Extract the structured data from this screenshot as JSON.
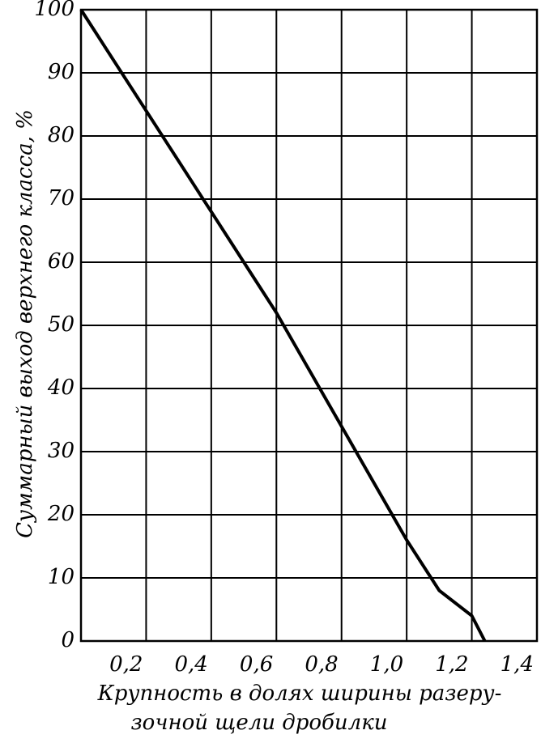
{
  "chart_data": {
    "type": "line",
    "x_label": [
      "Крупность в долях ширины разеру-",
      "зочной щели дробилки"
    ],
    "y_label": "Суммарный выход верхнего класса, %",
    "x": [
      0,
      0.1,
      0.2,
      0.3,
      0.4,
      0.5,
      0.6,
      0.7,
      0.8,
      0.9,
      1.0,
      1.1,
      1.2,
      1.24
    ],
    "series": [
      {
        "color": "#000000",
        "values": [
          100,
          92,
          84,
          76,
          68,
          60,
          52,
          43,
          34,
          25,
          16,
          8,
          4,
          0
        ]
      }
    ],
    "xlim": [
      0,
      1.4
    ],
    "xticks": [
      {
        "value": 0.2,
        "label": "0,2"
      },
      {
        "value": 0.4,
        "label": "0,4"
      },
      {
        "value": 0.6,
        "label": "0,6"
      },
      {
        "value": 0.8,
        "label": "0,8"
      },
      {
        "value": 1.0,
        "label": "1,0"
      },
      {
        "value": 1.2,
        "label": "1,2"
      },
      {
        "value": 1.4,
        "label": "1,4"
      }
    ],
    "ylim": [
      0,
      100
    ],
    "yticks": [
      0,
      10,
      20,
      30,
      40,
      50,
      60,
      70,
      80,
      90,
      100
    ],
    "grid": true
  }
}
